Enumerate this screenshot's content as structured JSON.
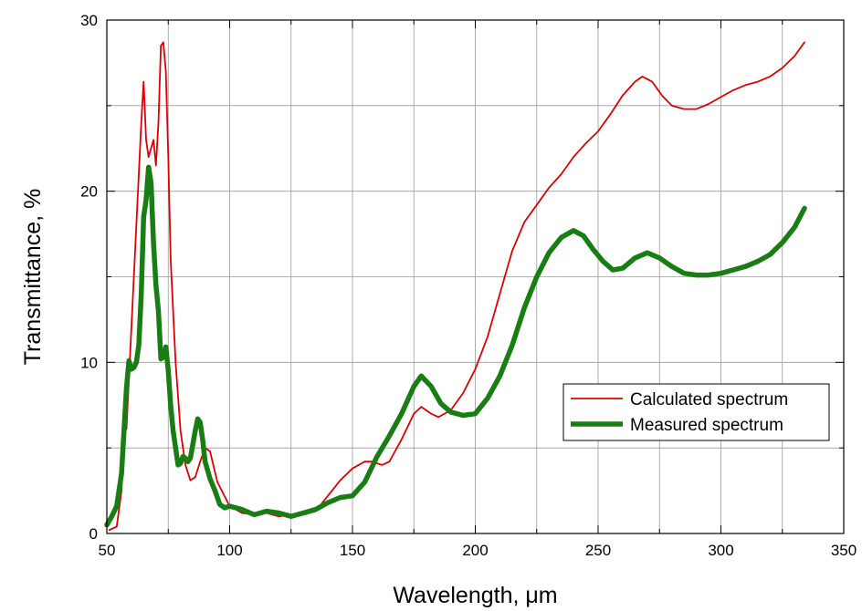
{
  "chart_data": {
    "type": "line",
    "title": "",
    "xlabel": "Wavelength, μm",
    "ylabel": "Transmittance, %",
    "xlim": [
      50,
      350
    ],
    "ylim": [
      0,
      30
    ],
    "x_ticks": [
      "50",
      "100",
      "150",
      "200",
      "250",
      "300",
      "350"
    ],
    "y_ticks": [
      "0",
      "10",
      "20",
      "30"
    ],
    "grid": true,
    "legend_position": "right-middle",
    "series": [
      {
        "name": "Calculated spectrum",
        "color": "#e00000",
        "points": [
          [
            51,
            0.2
          ],
          [
            54,
            0.4
          ],
          [
            56,
            2.5
          ],
          [
            57,
            6.0
          ],
          [
            58,
            6.1
          ],
          [
            60,
            12
          ],
          [
            62,
            18
          ],
          [
            64,
            24
          ],
          [
            65,
            26.4
          ],
          [
            66,
            23
          ],
          [
            67,
            22
          ],
          [
            68,
            22.5
          ],
          [
            69,
            23
          ],
          [
            70,
            21.5
          ],
          [
            71,
            24
          ],
          [
            72,
            28.5
          ],
          [
            73,
            28.7
          ],
          [
            74,
            27
          ],
          [
            75,
            22
          ],
          [
            76,
            16
          ],
          [
            78,
            10
          ],
          [
            80,
            6
          ],
          [
            82,
            4
          ],
          [
            84,
            3.1
          ],
          [
            86,
            3.3
          ],
          [
            88,
            4.2
          ],
          [
            90,
            5.0
          ],
          [
            92,
            4.8
          ],
          [
            95,
            3
          ],
          [
            100,
            1.6
          ],
          [
            105,
            1.2
          ],
          [
            110,
            1.1
          ],
          [
            115,
            1.2
          ],
          [
            120,
            1.0
          ],
          [
            125,
            1.1
          ],
          [
            130,
            1.1
          ],
          [
            135,
            1.3
          ],
          [
            140,
            2.2
          ],
          [
            145,
            3.1
          ],
          [
            150,
            3.8
          ],
          [
            155,
            4.2
          ],
          [
            158,
            4.2
          ],
          [
            162,
            4.0
          ],
          [
            165,
            4.2
          ],
          [
            170,
            5.5
          ],
          [
            175,
            7.0
          ],
          [
            178,
            7.4
          ],
          [
            182,
            7.0
          ],
          [
            185,
            6.8
          ],
          [
            190,
            7.2
          ],
          [
            195,
            8.2
          ],
          [
            200,
            9.6
          ],
          [
            205,
            11.5
          ],
          [
            210,
            14
          ],
          [
            215,
            16.5
          ],
          [
            220,
            18.2
          ],
          [
            225,
            19.2
          ],
          [
            230,
            20.2
          ],
          [
            235,
            21.0
          ],
          [
            240,
            22.0
          ],
          [
            245,
            22.8
          ],
          [
            250,
            23.5
          ],
          [
            255,
            24.5
          ],
          [
            260,
            25.6
          ],
          [
            265,
            26.4
          ],
          [
            268,
            26.7
          ],
          [
            272,
            26.4
          ],
          [
            276,
            25.6
          ],
          [
            280,
            25.0
          ],
          [
            285,
            24.8
          ],
          [
            290,
            24.8
          ],
          [
            295,
            25.1
          ],
          [
            300,
            25.5
          ],
          [
            305,
            25.9
          ],
          [
            310,
            26.2
          ],
          [
            315,
            26.4
          ],
          [
            320,
            26.7
          ],
          [
            325,
            27.2
          ],
          [
            330,
            27.9
          ],
          [
            334,
            28.7
          ]
        ]
      },
      {
        "name": "Measured spectrum",
        "color": "#187d12",
        "points": [
          [
            50,
            0.5
          ],
          [
            52,
            1.0
          ],
          [
            54,
            1.6
          ],
          [
            56,
            3.5
          ],
          [
            57,
            6.0
          ],
          [
            58,
            8.5
          ],
          [
            59,
            10.1
          ],
          [
            60,
            9.6
          ],
          [
            61,
            9.7
          ],
          [
            62,
            10.0
          ],
          [
            63,
            11
          ],
          [
            64,
            14
          ],
          [
            65,
            18.5
          ],
          [
            66,
            19.5
          ],
          [
            67,
            21.4
          ],
          [
            68,
            20.5
          ],
          [
            69,
            17
          ],
          [
            70,
            14.5
          ],
          [
            71,
            13
          ],
          [
            72,
            10.2
          ],
          [
            73,
            10.3
          ],
          [
            74,
            10.9
          ],
          [
            75,
            9.5
          ],
          [
            76,
            7.5
          ],
          [
            77,
            6.0
          ],
          [
            78,
            5.0
          ],
          [
            79,
            4.0
          ],
          [
            80,
            4.1
          ],
          [
            81,
            4.5
          ],
          [
            82,
            4.4
          ],
          [
            83,
            4.2
          ],
          [
            84,
            4.4
          ],
          [
            86,
            6.0
          ],
          [
            87,
            6.7
          ],
          [
            88,
            6.5
          ],
          [
            89,
            5.5
          ],
          [
            90,
            4.2
          ],
          [
            92,
            3.2
          ],
          [
            94,
            2.5
          ],
          [
            96,
            1.7
          ],
          [
            98,
            1.5
          ],
          [
            100,
            1.6
          ],
          [
            105,
            1.4
          ],
          [
            110,
            1.1
          ],
          [
            115,
            1.3
          ],
          [
            120,
            1.2
          ],
          [
            125,
            1.0
          ],
          [
            130,
            1.2
          ],
          [
            135,
            1.4
          ],
          [
            140,
            1.8
          ],
          [
            145,
            2.1
          ],
          [
            150,
            2.2
          ],
          [
            155,
            3.0
          ],
          [
            160,
            4.5
          ],
          [
            165,
            5.7
          ],
          [
            170,
            7.0
          ],
          [
            175,
            8.6
          ],
          [
            178,
            9.2
          ],
          [
            182,
            8.6
          ],
          [
            186,
            7.6
          ],
          [
            190,
            7.1
          ],
          [
            195,
            6.9
          ],
          [
            200,
            7.0
          ],
          [
            205,
            7.9
          ],
          [
            210,
            9.2
          ],
          [
            215,
            11.0
          ],
          [
            220,
            13.2
          ],
          [
            225,
            15.0
          ],
          [
            230,
            16.4
          ],
          [
            235,
            17.3
          ],
          [
            240,
            17.7
          ],
          [
            244,
            17.4
          ],
          [
            248,
            16.6
          ],
          [
            252,
            15.9
          ],
          [
            256,
            15.4
          ],
          [
            260,
            15.5
          ],
          [
            265,
            16.1
          ],
          [
            270,
            16.4
          ],
          [
            275,
            16.1
          ],
          [
            280,
            15.6
          ],
          [
            285,
            15.2
          ],
          [
            290,
            15.1
          ],
          [
            295,
            15.1
          ],
          [
            300,
            15.2
          ],
          [
            305,
            15.4
          ],
          [
            310,
            15.6
          ],
          [
            315,
            15.9
          ],
          [
            320,
            16.3
          ],
          [
            325,
            17.0
          ],
          [
            330,
            17.9
          ],
          [
            334,
            19.0
          ]
        ]
      }
    ]
  }
}
